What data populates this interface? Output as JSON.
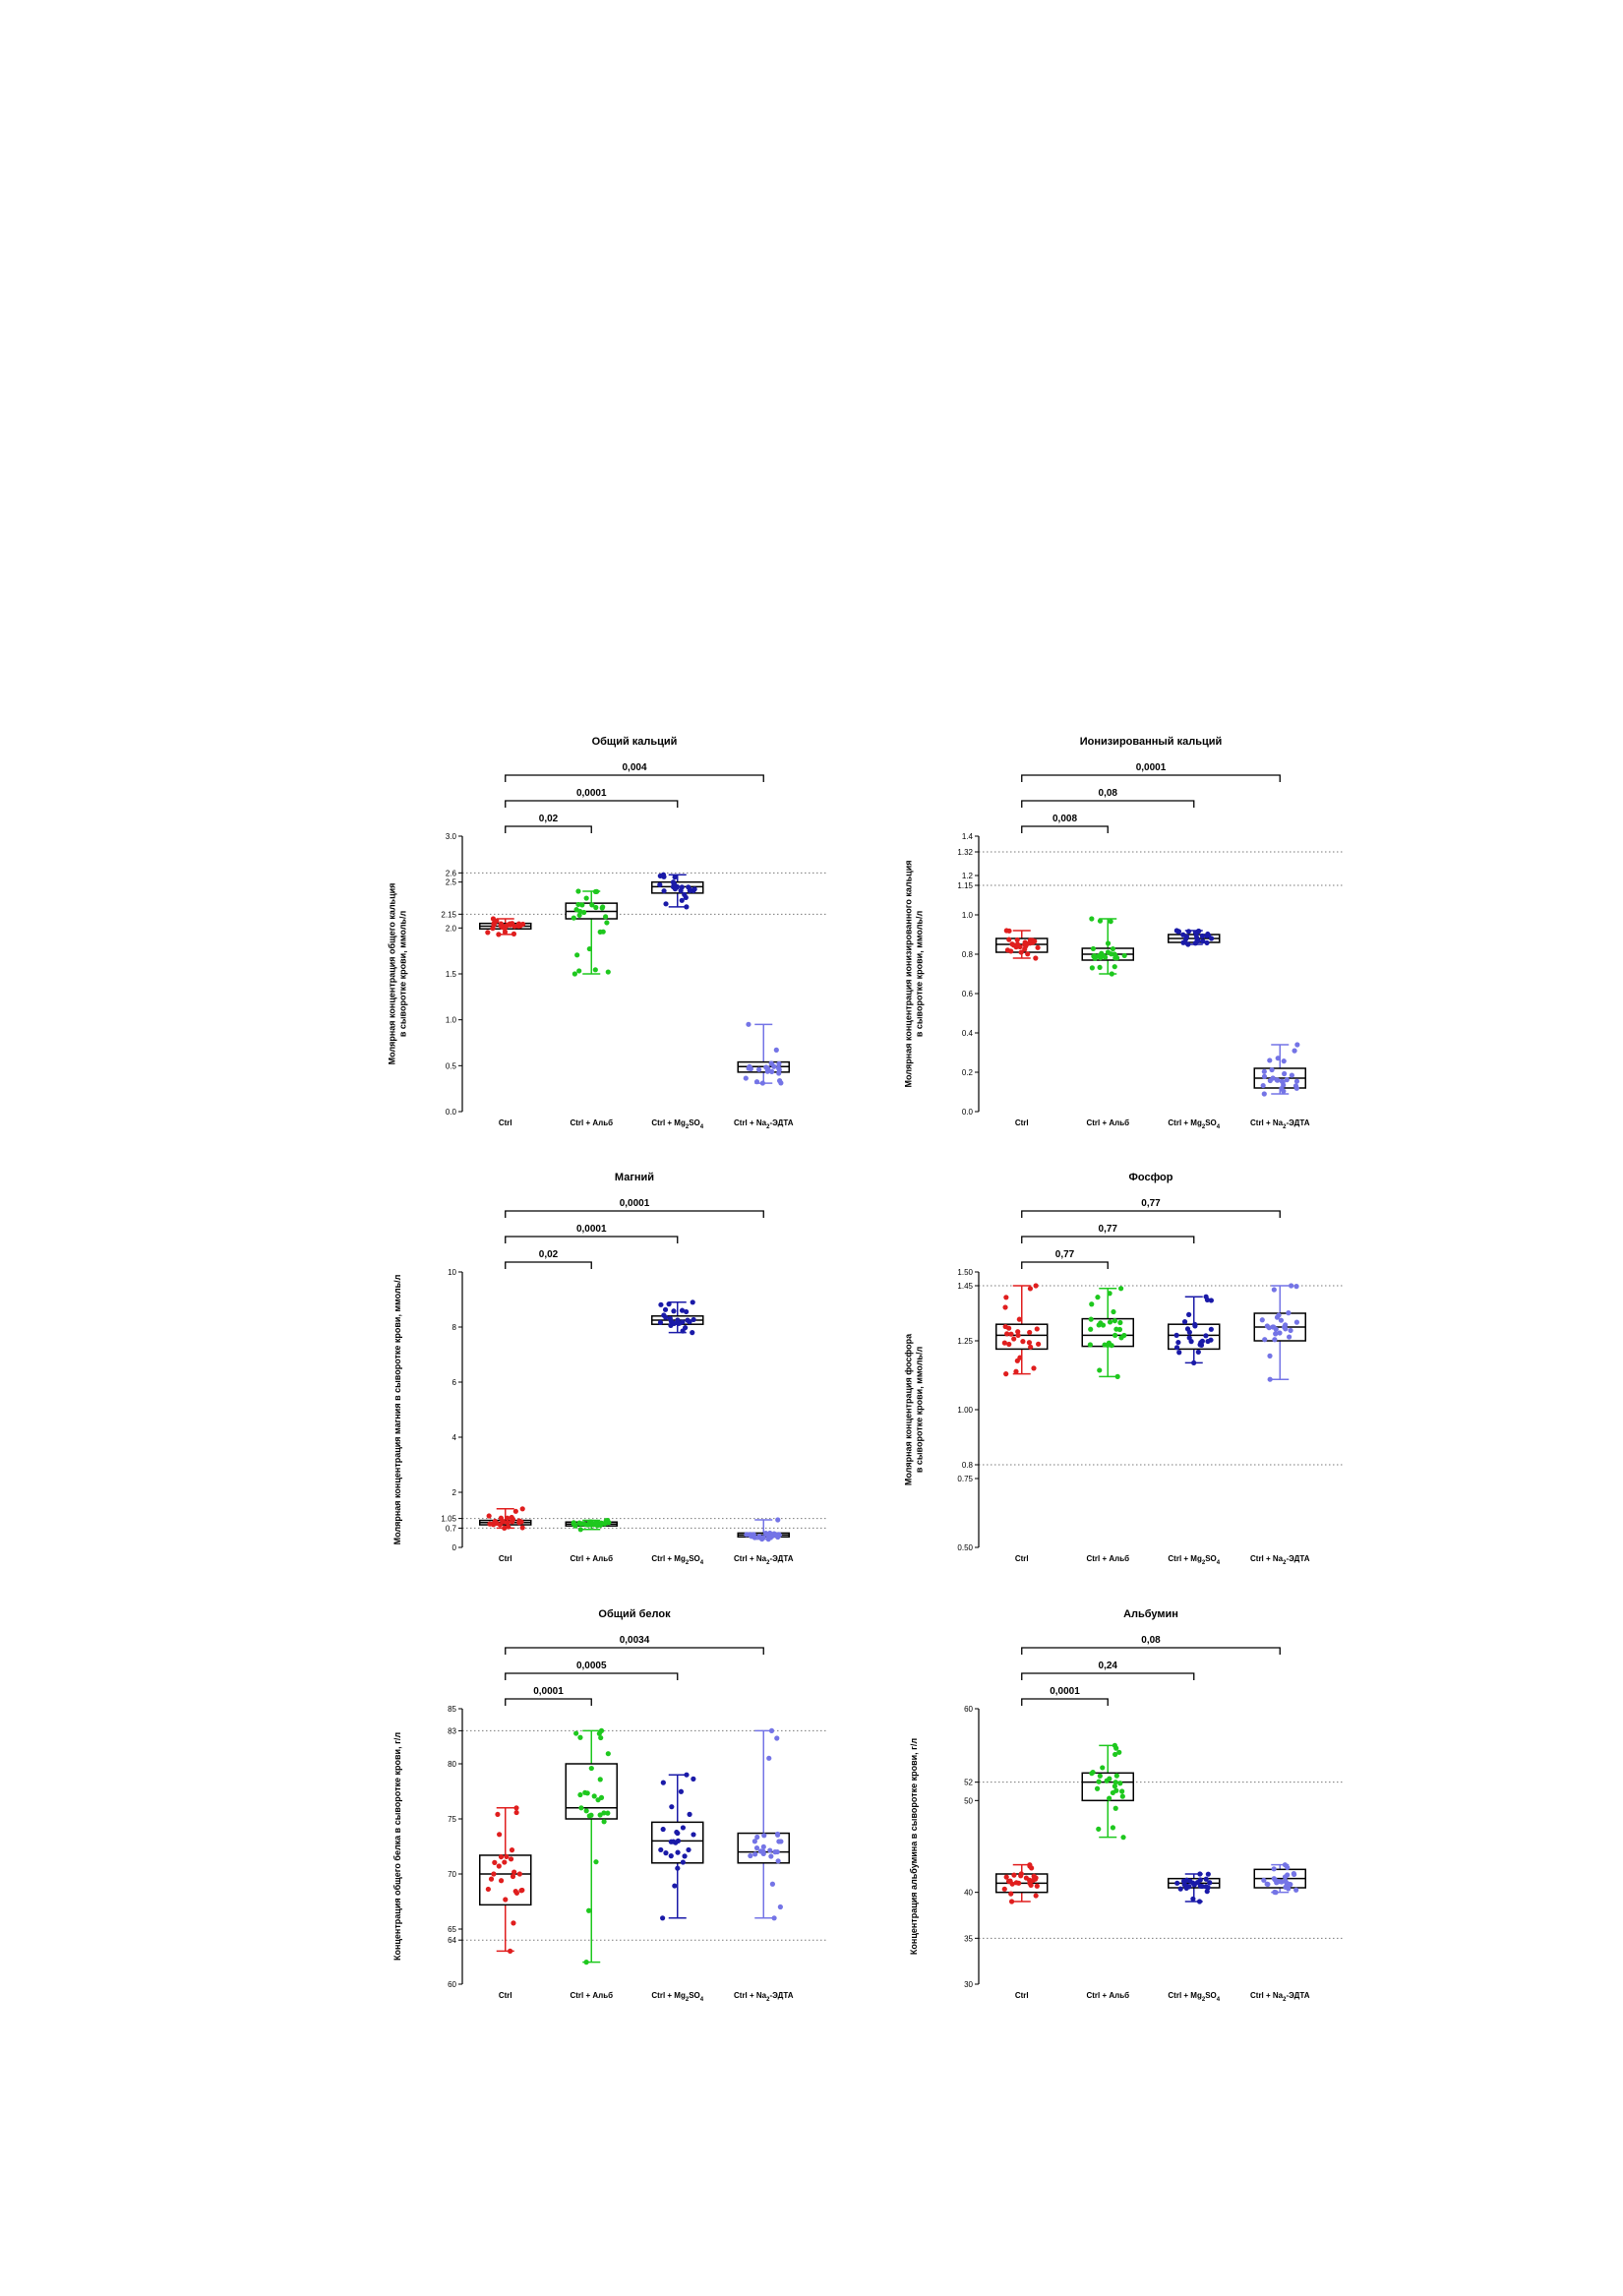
{
  "colors": {
    "Ctrl": "#e01e1e",
    "Ctrl + Альб": "#1ec81e",
    "Ctrl + Mg2SO4": "#1a1aa8",
    "Ctrl + Na2-ЭДТА": "#7474e6",
    "reference_line": "#7a7a7a",
    "axis": "#000000"
  },
  "chart_data": [
    {
      "type": "box",
      "title": "Общий кальций",
      "ylabel_lines": [
        "Молярная концентрация общего кальция",
        "в сыворотке крови, ммоль/л"
      ],
      "ylim": [
        0,
        3.0
      ],
      "yticks": [
        {
          "v": 0,
          "label": "0.0"
        },
        {
          "v": 0.5,
          "label": "0.5"
        },
        {
          "v": 1.0,
          "label": "1.0"
        },
        {
          "v": 1.5,
          "label": "1.5"
        },
        {
          "v": 2.0,
          "label": "2.0"
        },
        {
          "v": 2.15,
          "label": "2.15"
        },
        {
          "v": 2.5,
          "label": "2.5"
        },
        {
          "v": 2.6,
          "label": "2.6"
        },
        {
          "v": 3.0,
          "label": "3.0"
        }
      ],
      "reference_lines": [
        2.15,
        2.6
      ],
      "categories": [
        "Ctrl",
        "Ctrl + Альб",
        "Ctrl + Mg2SO4",
        "Ctrl + Na2-ЭДТА"
      ],
      "boxes": [
        {
          "min": 1.93,
          "q1": 1.99,
          "median": 2.02,
          "q3": 2.05,
          "max": 2.1
        },
        {
          "min": 1.5,
          "q1": 2.1,
          "median": 2.18,
          "q3": 2.27,
          "max": 2.4
        },
        {
          "min": 2.23,
          "q1": 2.38,
          "median": 2.45,
          "q3": 2.5,
          "max": 2.58
        },
        {
          "min": 0.31,
          "q1": 0.43,
          "median": 0.49,
          "q3": 0.54,
          "max": 0.95
        }
      ],
      "comparisons": [
        {
          "from": 0,
          "to": 1,
          "label": "0,02"
        },
        {
          "from": 0,
          "to": 2,
          "label": "0,0001"
        },
        {
          "from": 0,
          "to": 3,
          "label": "0,004"
        }
      ]
    },
    {
      "type": "box",
      "title": "Ионизированный кальций",
      "ylabel_lines": [
        "Молярная концентрация ионизированного кальция",
        "в сыворотке крови, ммоль/л"
      ],
      "ylim": [
        0,
        1.4
      ],
      "yticks": [
        {
          "v": 0,
          "label": "0.0"
        },
        {
          "v": 0.2,
          "label": "0.2"
        },
        {
          "v": 0.4,
          "label": "0.4"
        },
        {
          "v": 0.6,
          "label": "0.6"
        },
        {
          "v": 0.8,
          "label": "0.8"
        },
        {
          "v": 1.0,
          "label": "1.0"
        },
        {
          "v": 1.15,
          "label": "1.15"
        },
        {
          "v": 1.2,
          "label": "1.2"
        },
        {
          "v": 1.32,
          "label": "1.32"
        },
        {
          "v": 1.4,
          "label": "1.4"
        }
      ],
      "reference_lines": [
        1.15,
        1.32
      ],
      "categories": [
        "Ctrl",
        "Ctrl + Альб",
        "Ctrl + Mg2SO4",
        "Ctrl + Na2-ЭДТА"
      ],
      "boxes": [
        {
          "min": 0.78,
          "q1": 0.81,
          "median": 0.85,
          "q3": 0.88,
          "max": 0.92
        },
        {
          "min": 0.7,
          "q1": 0.77,
          "median": 0.8,
          "q3": 0.83,
          "max": 0.98
        },
        {
          "min": 0.85,
          "q1": 0.86,
          "median": 0.88,
          "q3": 0.9,
          "max": 0.92
        },
        {
          "min": 0.09,
          "q1": 0.12,
          "median": 0.17,
          "q3": 0.22,
          "max": 0.34
        }
      ],
      "comparisons": [
        {
          "from": 0,
          "to": 1,
          "label": "0,008"
        },
        {
          "from": 0,
          "to": 2,
          "label": "0,08"
        },
        {
          "from": 0,
          "to": 3,
          "label": "0,0001"
        }
      ]
    },
    {
      "type": "box",
      "title": "Магний",
      "ylabel_lines": [
        "Молярная концентрация магния в сыворотке крови, ммоль/л"
      ],
      "ylim": [
        0,
        10
      ],
      "yticks": [
        {
          "v": 0,
          "label": "0"
        },
        {
          "v": 0.7,
          "label": "0.7"
        },
        {
          "v": 1.05,
          "label": "1.05"
        },
        {
          "v": 2,
          "label": "2"
        },
        {
          "v": 4,
          "label": "4"
        },
        {
          "v": 6,
          "label": "6"
        },
        {
          "v": 8,
          "label": "8"
        },
        {
          "v": 10,
          "label": "10"
        }
      ],
      "reference_lines": [
        0.7,
        1.05
      ],
      "categories": [
        "Ctrl",
        "Ctrl + Альб",
        "Ctrl + Mg2SO4",
        "Ctrl + Na2-ЭДТА"
      ],
      "boxes": [
        {
          "min": 0.7,
          "q1": 0.82,
          "median": 0.9,
          "q3": 0.98,
          "max": 1.4
        },
        {
          "min": 0.65,
          "q1": 0.78,
          "median": 0.85,
          "q3": 0.92,
          "max": 0.98
        },
        {
          "min": 7.8,
          "q1": 8.1,
          "median": 8.25,
          "q3": 8.4,
          "max": 8.9
        },
        {
          "min": 0.3,
          "q1": 0.38,
          "median": 0.45,
          "q3": 0.52,
          "max": 1.0
        }
      ],
      "comparisons": [
        {
          "from": 0,
          "to": 1,
          "label": "0,02"
        },
        {
          "from": 0,
          "to": 2,
          "label": "0,0001"
        },
        {
          "from": 0,
          "to": 3,
          "label": "0,0001"
        }
      ]
    },
    {
      "type": "box",
      "title": "Фосфор",
      "ylabel_lines": [
        "Молярная концентрация фосфора",
        "в сыворотке крови, ммоль/л"
      ],
      "ylim": [
        0.5,
        1.5
      ],
      "yticks": [
        {
          "v": 0.5,
          "label": "0.50"
        },
        {
          "v": 0.75,
          "label": "0.75"
        },
        {
          "v": 0.8,
          "label": "0.8"
        },
        {
          "v": 1.0,
          "label": "1.00"
        },
        {
          "v": 1.25,
          "label": "1.25"
        },
        {
          "v": 1.45,
          "label": "1.45"
        },
        {
          "v": 1.5,
          "label": "1.50"
        }
      ],
      "reference_lines": [
        0.8,
        1.45
      ],
      "categories": [
        "Ctrl",
        "Ctrl + Альб",
        "Ctrl + Mg2SO4",
        "Ctrl + Na2-ЭДТА"
      ],
      "boxes": [
        {
          "min": 1.13,
          "q1": 1.22,
          "median": 1.27,
          "q3": 1.31,
          "max": 1.45
        },
        {
          "min": 1.12,
          "q1": 1.23,
          "median": 1.27,
          "q3": 1.33,
          "max": 1.44
        },
        {
          "min": 1.17,
          "q1": 1.22,
          "median": 1.27,
          "q3": 1.31,
          "max": 1.41
        },
        {
          "min": 1.11,
          "q1": 1.25,
          "median": 1.3,
          "q3": 1.35,
          "max": 1.45
        }
      ],
      "comparisons": [
        {
          "from": 0,
          "to": 1,
          "label": "0,77"
        },
        {
          "from": 0,
          "to": 2,
          "label": "0,77"
        },
        {
          "from": 0,
          "to": 3,
          "label": "0,77"
        }
      ]
    },
    {
      "type": "box",
      "title": "Общий белок",
      "ylabel_lines": [
        "Концентрация общего белка в сыворотке крови, г/л"
      ],
      "ylim": [
        60,
        85
      ],
      "yticks": [
        {
          "v": 60,
          "label": "60"
        },
        {
          "v": 64,
          "label": "64"
        },
        {
          "v": 65,
          "label": "65"
        },
        {
          "v": 70,
          "label": "70"
        },
        {
          "v": 75,
          "label": "75"
        },
        {
          "v": 80,
          "label": "80"
        },
        {
          "v": 83,
          "label": "83"
        },
        {
          "v": 85,
          "label": "85"
        }
      ],
      "reference_lines": [
        64,
        83
      ],
      "categories": [
        "Ctrl",
        "Ctrl + Альб",
        "Ctrl + Mg2SO4",
        "Ctrl + Na2-ЭДТА"
      ],
      "boxes": [
        {
          "min": 63,
          "q1": 67.2,
          "median": 70,
          "q3": 71.7,
          "max": 76
        },
        {
          "min": 62,
          "q1": 75,
          "median": 76,
          "q3": 80,
          "max": 83
        },
        {
          "min": 66,
          "q1": 71,
          "median": 73,
          "q3": 74.7,
          "max": 79
        },
        {
          "min": 66,
          "q1": 71,
          "median": 72,
          "q3": 73.7,
          "max": 83
        }
      ],
      "comparisons": [
        {
          "from": 0,
          "to": 1,
          "label": "0,0001"
        },
        {
          "from": 0,
          "to": 2,
          "label": "0,0005"
        },
        {
          "from": 0,
          "to": 3,
          "label": "0,0034"
        }
      ]
    },
    {
      "type": "box",
      "title": "Альбумин",
      "ylabel_lines": [
        "Концентрация альбумина в сыворотке крови, г/л"
      ],
      "ylim": [
        30,
        60
      ],
      "yticks": [
        {
          "v": 30,
          "label": "30"
        },
        {
          "v": 35,
          "label": "35"
        },
        {
          "v": 40,
          "label": "40"
        },
        {
          "v": 50,
          "label": "50"
        },
        {
          "v": 52,
          "label": "52"
        },
        {
          "v": 60,
          "label": "60"
        }
      ],
      "reference_lines": [
        35,
        52
      ],
      "categories": [
        "Ctrl",
        "Ctrl + Альб",
        "Ctrl + Mg2SO4",
        "Ctrl + Na2-ЭДТА"
      ],
      "boxes": [
        {
          "min": 39,
          "q1": 40,
          "median": 41,
          "q3": 42,
          "max": 43
        },
        {
          "min": 46,
          "q1": 50,
          "median": 52,
          "q3": 53,
          "max": 56
        },
        {
          "min": 39,
          "q1": 40.5,
          "median": 41,
          "q3": 41.5,
          "max": 42
        },
        {
          "min": 40,
          "q1": 40.5,
          "median": 41.5,
          "q3": 42.5,
          "max": 43
        }
      ],
      "comparisons": [
        {
          "from": 0,
          "to": 1,
          "label": "0,0001"
        },
        {
          "from": 0,
          "to": 2,
          "label": "0,24"
        },
        {
          "from": 0,
          "to": 3,
          "label": "0,08"
        }
      ]
    }
  ]
}
